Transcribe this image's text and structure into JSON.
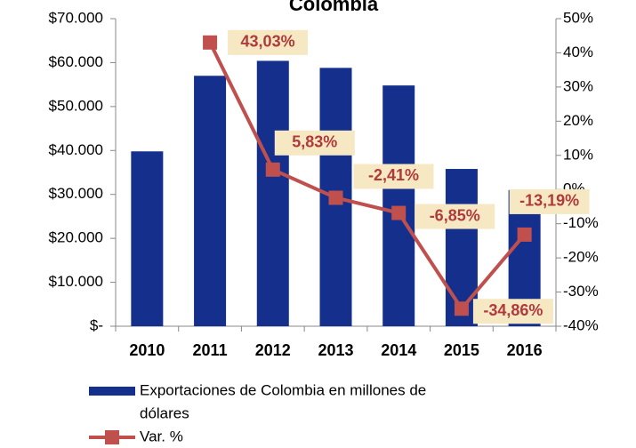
{
  "chart_data": {
    "type": "bar-line",
    "title": "Colombia",
    "categories": [
      "2010",
      "2011",
      "2012",
      "2013",
      "2014",
      "2015",
      "2016"
    ],
    "series": [
      {
        "name": "Exportaciones de Colombia en millones de dólares",
        "type": "bar",
        "color": "#14308c",
        "values": [
          39800,
          57000,
          60400,
          58800,
          54800,
          35800,
          31000
        ]
      },
      {
        "name": "Var. %",
        "type": "line",
        "axis": "y2",
        "color": "#c0504d",
        "values": [
          null,
          43.03,
          5.83,
          -2.41,
          -6.85,
          -34.86,
          -13.19
        ],
        "value_labels": [
          null,
          "43,03%",
          "5,83%",
          "-2,41%",
          "-6,85%",
          "-34,86%",
          "-13,19%"
        ]
      }
    ],
    "ylim": [
      0,
      70000
    ],
    "yticks": [
      {
        "value": 0,
        "label": "$-"
      },
      {
        "value": 10000,
        "label": "$10.000"
      },
      {
        "value": 20000,
        "label": "$20.000"
      },
      {
        "value": 30000,
        "label": "$30.000"
      },
      {
        "value": 40000,
        "label": "$40.000"
      },
      {
        "value": 50000,
        "label": "$50.000"
      },
      {
        "value": 60000,
        "label": "$60.000"
      },
      {
        "value": 70000,
        "label": "$70.000"
      }
    ],
    "y2lim": [
      -40,
      50
    ],
    "y2ticks": [
      {
        "value": -40,
        "label": "-40%"
      },
      {
        "value": -30,
        "label": "-30%"
      },
      {
        "value": -20,
        "label": "-20%"
      },
      {
        "value": -10,
        "label": "-10%"
      },
      {
        "value": 0,
        "label": "0%"
      },
      {
        "value": 10,
        "label": "10%"
      },
      {
        "value": 20,
        "label": "20%"
      },
      {
        "value": 30,
        "label": "30%"
      },
      {
        "value": 40,
        "label": "40%"
      },
      {
        "value": 50,
        "label": "50%"
      }
    ],
    "legend": "bottom"
  }
}
